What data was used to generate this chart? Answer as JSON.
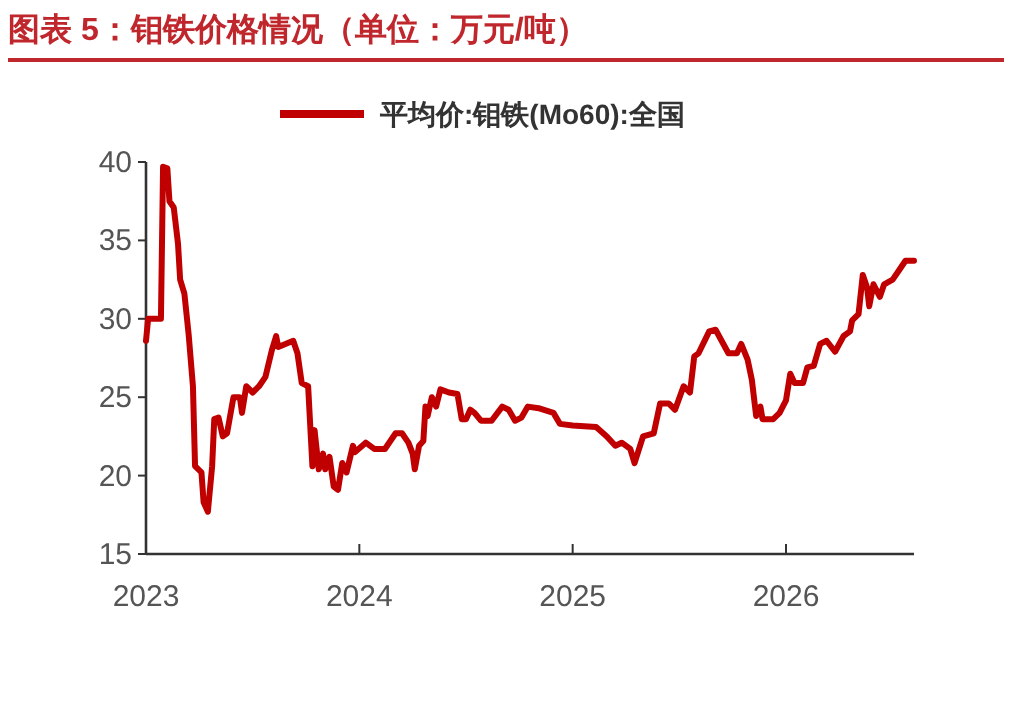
{
  "chart_data": {
    "type": "line",
    "title": "图表 5：钼铁价格情况（单位：万元/吨）",
    "legend": "top",
    "grid": false,
    "line_style": "solid",
    "marker": "none",
    "xlim": [
      2023,
      2026.6
    ],
    "xticks": [
      2023,
      2024,
      2025,
      2026
    ],
    "ylim": [
      15,
      40
    ],
    "yticks": [
      15,
      20,
      25,
      30,
      35,
      40
    ],
    "series": [
      {
        "name": "平均价:钼铁(Mo60):全国",
        "color": "#c00000",
        "x": [
          2023.0,
          2023.01,
          2023.07,
          2023.08,
          2023.1,
          2023.11,
          2023.13,
          2023.15,
          2023.16,
          2023.18,
          2023.2,
          2023.22,
          2023.23,
          2023.26,
          2023.27,
          2023.29,
          2023.31,
          2023.32,
          2023.34,
          2023.36,
          2023.38,
          2023.41,
          2023.44,
          2023.45,
          2023.47,
          2023.5,
          2023.53,
          2023.56,
          2023.59,
          2023.61,
          2023.62,
          2023.69,
          2023.71,
          2023.73,
          2023.76,
          2023.78,
          2023.79,
          2023.81,
          2023.83,
          2023.84,
          2023.86,
          2023.88,
          2023.9,
          2023.92,
          2023.94,
          2023.97,
          2023.98,
          2024.03,
          2024.07,
          2024.12,
          2024.17,
          2024.2,
          2024.23,
          2024.25,
          2024.26,
          2024.28,
          2024.3,
          2024.31,
          2024.32,
          2024.34,
          2024.36,
          2024.38,
          2024.42,
          2024.46,
          2024.48,
          2024.5,
          2024.52,
          2024.54,
          2024.57,
          2024.62,
          2024.67,
          2024.7,
          2024.73,
          2024.76,
          2024.79,
          2024.84,
          2024.91,
          2024.94,
          2025.0,
          2025.11,
          2025.16,
          2025.2,
          2025.23,
          2025.27,
          2025.29,
          2025.33,
          2025.38,
          2025.41,
          2025.45,
          2025.48,
          2025.52,
          2025.55,
          2025.57,
          2025.59,
          2025.64,
          2025.67,
          2025.73,
          2025.77,
          2025.79,
          2025.82,
          2025.84,
          2025.86,
          2025.88,
          2025.89,
          2025.94,
          2025.97,
          2026.0,
          2026.02,
          2026.04,
          2026.08,
          2026.1,
          2026.13,
          2026.16,
          2026.19,
          2026.23,
          2026.27,
          2026.3,
          2026.31,
          2026.34,
          2026.36,
          2026.38,
          2026.39,
          2026.41,
          2026.44,
          2026.46,
          2026.5,
          2026.53,
          2026.56,
          2026.6
        ],
        "values": [
          28.6,
          30,
          30,
          39.7,
          39.6,
          37.5,
          37.1,
          34.8,
          32.5,
          31.6,
          29,
          25.7,
          20.6,
          20.2,
          18.3,
          17.7,
          20.6,
          23.6,
          23.7,
          22.5,
          22.7,
          25,
          25,
          24,
          25.7,
          25.3,
          25.7,
          26.3,
          28,
          28.9,
          28.2,
          28.6,
          27.8,
          25.9,
          25.7,
          20.6,
          22.9,
          20.4,
          21.4,
          20.4,
          21.2,
          19.3,
          19.1,
          20.8,
          20.2,
          21.9,
          21.5,
          22.1,
          21.7,
          21.7,
          22.7,
          22.7,
          22.1,
          21.4,
          20.4,
          21.9,
          22.2,
          24.4,
          23.8,
          25,
          24.4,
          25.5,
          25.3,
          25.2,
          23.6,
          23.6,
          24.2,
          24,
          23.5,
          23.5,
          24.4,
          24.2,
          23.5,
          23.7,
          24.4,
          24.3,
          24,
          23.3,
          23.2,
          23.1,
          22.5,
          21.9,
          22.1,
          21.7,
          20.8,
          22.5,
          22.7,
          24.6,
          24.6,
          24.2,
          25.7,
          25.3,
          27.6,
          27.8,
          29.2,
          29.3,
          27.8,
          27.8,
          28.4,
          27.4,
          26.1,
          23.8,
          24.4,
          23.6,
          23.6,
          24,
          24.8,
          26.5,
          25.9,
          25.9,
          26.9,
          27,
          28.4,
          28.6,
          27.9,
          28.9,
          29.2,
          29.9,
          30.3,
          32.8,
          32,
          30.8,
          32.2,
          31.4,
          32.2,
          32.5,
          33.1,
          33.7,
          33.7
        ]
      }
    ]
  }
}
